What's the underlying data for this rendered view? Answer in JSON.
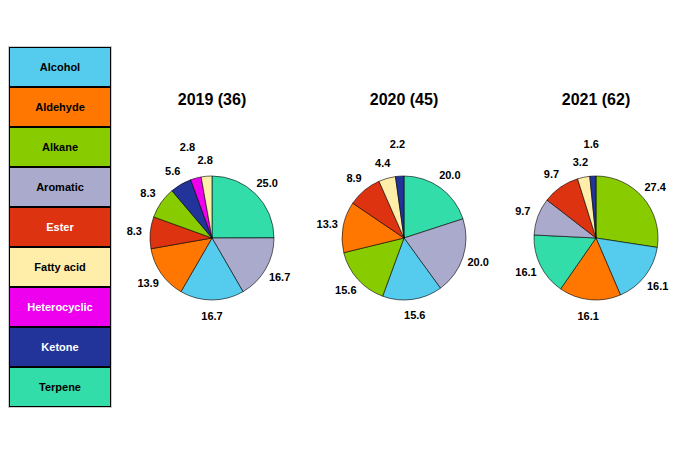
{
  "chart_data": [
    {
      "type": "pie",
      "title": "2019 (36)",
      "categories": [
        "Terpene",
        "Aromatic",
        "Alcohol",
        "Aldehyde",
        "Ester",
        "Alkane",
        "Ketone",
        "Heterocyclic",
        "Fatty acid"
      ],
      "values": [
        25.0,
        16.7,
        16.7,
        13.9,
        8.3,
        8.3,
        5.6,
        2.8,
        2.8
      ],
      "colors": [
        "#33ddaa",
        "#aaaacc",
        "#55ccee",
        "#ff7700",
        "#dd3311",
        "#88cc00",
        "#223399",
        "#ee00ee",
        "#ffeeaa"
      ],
      "value_labels": [
        "25.0",
        "16.7",
        "16.7",
        "13.9",
        "8.3",
        "8.3",
        "5.6",
        "2.8",
        "2.8"
      ],
      "data_labels": true,
      "legend": "left"
    },
    {
      "type": "pie",
      "title": "2020 (45)",
      "categories": [
        "Terpene",
        "Aromatic",
        "Alcohol",
        "Alkane",
        "Aldehyde",
        "Ester",
        "Fatty acid",
        "Ketone",
        "Heterocyclic"
      ],
      "values": [
        20.0,
        20.0,
        15.6,
        15.6,
        13.3,
        8.9,
        4.4,
        2.2,
        0.0
      ],
      "colors": [
        "#33ddaa",
        "#aaaacc",
        "#55ccee",
        "#88cc00",
        "#ff7700",
        "#dd3311",
        "#ffeeaa",
        "#223399",
        "#ee00ee"
      ],
      "value_labels": [
        "20.0",
        "20.0",
        "15.6",
        "15.6",
        "13.3",
        "8.9",
        "4.4",
        "2.2",
        null
      ],
      "data_labels": true,
      "legend": "left"
    },
    {
      "type": "pie",
      "title": "2021 (62)",
      "categories": [
        "Alkane",
        "Alcohol",
        "Aldehyde",
        "Terpene",
        "Aromatic",
        "Ester",
        "Fatty acid",
        "Ketone",
        "Heterocyclic"
      ],
      "values": [
        27.4,
        16.1,
        16.1,
        16.1,
        9.7,
        9.7,
        3.2,
        1.6,
        0.0
      ],
      "colors": [
        "#88cc00",
        "#55ccee",
        "#ff7700",
        "#33ddaa",
        "#aaaacc",
        "#dd3311",
        "#ffeeaa",
        "#223399",
        "#ee00ee"
      ],
      "value_labels": [
        "27.4",
        "16.1",
        "16.1",
        "16.1",
        "9.7",
        "9.7",
        "3.2",
        "1.6",
        null
      ],
      "data_labels": true,
      "legend": "left"
    }
  ]
}
